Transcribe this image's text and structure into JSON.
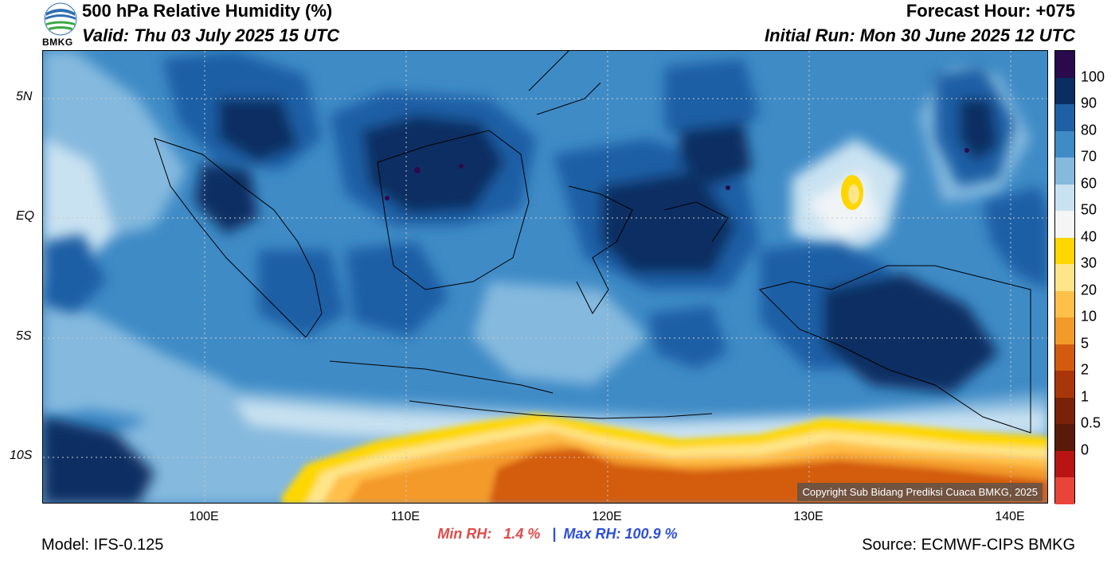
{
  "header": {
    "title": "500 hPa Relative Humidity (%)",
    "valid": "Valid: Thu 03 July 2025 15 UTC",
    "forecast_hour": "Forecast Hour: +075",
    "initial_run": "Initial Run: Mon 30 June 2025 12 UTC"
  },
  "logo": {
    "text": "BMKG",
    "icon": "bmkg-logo-icon"
  },
  "map": {
    "lat_labels": [
      "5N",
      "EQ",
      "5S",
      "10S"
    ],
    "lon_labels": [
      "100E",
      "110E",
      "120E",
      "130E",
      "140E"
    ],
    "copyright": "Copyright Sub Bidang Prediksi Cuaca BMKG, 2025"
  },
  "colorbar": {
    "labels": [
      "100",
      "90",
      "80",
      "70",
      "60",
      "50",
      "40",
      "30",
      "20",
      "10",
      "5",
      "2",
      "1",
      "0.5",
      "0"
    ],
    "colors": [
      "#2a0a4d",
      "#0b2e62",
      "#1f5fa5",
      "#3f8bc6",
      "#85b9de",
      "#c9e2f1",
      "#f5f5f5",
      "#ffd700",
      "#ffe58a",
      "#ffc04a",
      "#f39a2a",
      "#d35b0f",
      "#a8360a",
      "#7a2209",
      "#5a1a0a",
      "#b91414",
      "#e8443a"
    ]
  },
  "stats": {
    "min_label": "Min RH:",
    "min_value": "1.4 %",
    "separator": "|",
    "max_label": "Max RH:",
    "max_value": "100.9 %"
  },
  "footer": {
    "model": "Model: IFS-0.125",
    "source": "Source: ECMWF-CIPS BMKG"
  }
}
